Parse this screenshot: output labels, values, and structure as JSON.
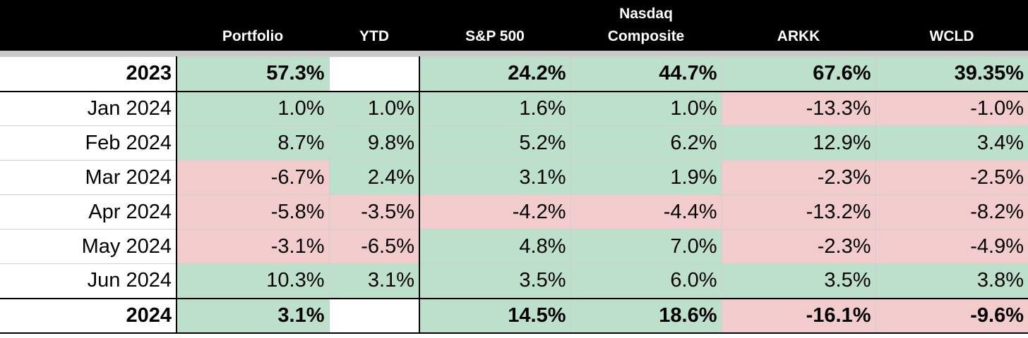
{
  "headers": {
    "portfolio": "Portfolio",
    "ytd": "YTD",
    "sp500": "S&P 500",
    "nasdaq_line1": "Nasdaq",
    "nasdaq_line2": "Composite",
    "arkk": "ARKK",
    "wcld": "WCLD"
  },
  "colors": {
    "positive": "#bce0cc",
    "negative": "#f2cccc",
    "header_bg": "#000000",
    "blank": "#ffffff"
  },
  "rows": [
    {
      "label": "2023",
      "type": "sum",
      "cells": [
        {
          "v": "57.3%",
          "s": "pos"
        },
        {
          "v": "",
          "s": "blank"
        },
        {
          "v": "24.2%",
          "s": "pos"
        },
        {
          "v": "44.7%",
          "s": "pos"
        },
        {
          "v": "67.6%",
          "s": "pos"
        },
        {
          "v": "39.35%",
          "s": "pos"
        }
      ]
    },
    {
      "label": "Jan 2024",
      "type": "month",
      "cells": [
        {
          "v": "1.0%",
          "s": "pos"
        },
        {
          "v": "1.0%",
          "s": "pos"
        },
        {
          "v": "1.6%",
          "s": "pos"
        },
        {
          "v": "1.0%",
          "s": "pos"
        },
        {
          "v": "-13.3%",
          "s": "neg"
        },
        {
          "v": "-1.0%",
          "s": "neg"
        }
      ]
    },
    {
      "label": "Feb 2024",
      "type": "month",
      "cells": [
        {
          "v": "8.7%",
          "s": "pos"
        },
        {
          "v": "9.8%",
          "s": "pos"
        },
        {
          "v": "5.2%",
          "s": "pos"
        },
        {
          "v": "6.2%",
          "s": "pos"
        },
        {
          "v": "12.9%",
          "s": "pos"
        },
        {
          "v": "3.4%",
          "s": "pos"
        }
      ]
    },
    {
      "label": "Mar 2024",
      "type": "month",
      "cells": [
        {
          "v": "-6.7%",
          "s": "neg"
        },
        {
          "v": "2.4%",
          "s": "pos"
        },
        {
          "v": "3.1%",
          "s": "pos"
        },
        {
          "v": "1.9%",
          "s": "pos"
        },
        {
          "v": "-2.3%",
          "s": "neg"
        },
        {
          "v": "-2.5%",
          "s": "neg"
        }
      ]
    },
    {
      "label": "Apr 2024",
      "type": "month",
      "cells": [
        {
          "v": "-5.8%",
          "s": "neg"
        },
        {
          "v": "-3.5%",
          "s": "neg"
        },
        {
          "v": "-4.2%",
          "s": "neg"
        },
        {
          "v": "-4.4%",
          "s": "neg"
        },
        {
          "v": "-13.2%",
          "s": "neg"
        },
        {
          "v": "-8.2%",
          "s": "neg"
        }
      ]
    },
    {
      "label": "May 2024",
      "type": "month",
      "cells": [
        {
          "v": "-3.1%",
          "s": "neg"
        },
        {
          "v": "-6.5%",
          "s": "neg"
        },
        {
          "v": "4.8%",
          "s": "pos"
        },
        {
          "v": "7.0%",
          "s": "pos"
        },
        {
          "v": "-2.3%",
          "s": "neg"
        },
        {
          "v": "-4.9%",
          "s": "neg"
        }
      ]
    },
    {
      "label": "Jun 2024",
      "type": "month",
      "cells": [
        {
          "v": "10.3%",
          "s": "pos"
        },
        {
          "v": "3.1%",
          "s": "pos"
        },
        {
          "v": "3.5%",
          "s": "pos"
        },
        {
          "v": "6.0%",
          "s": "pos"
        },
        {
          "v": "3.5%",
          "s": "pos"
        },
        {
          "v": "3.8%",
          "s": "pos"
        }
      ]
    },
    {
      "label": "2024",
      "type": "sum",
      "cells": [
        {
          "v": "3.1%",
          "s": "pos"
        },
        {
          "v": "",
          "s": "blank"
        },
        {
          "v": "14.5%",
          "s": "pos"
        },
        {
          "v": "18.6%",
          "s": "pos"
        },
        {
          "v": "-16.1%",
          "s": "neg"
        },
        {
          "v": "-9.6%",
          "s": "neg"
        }
      ]
    }
  ]
}
